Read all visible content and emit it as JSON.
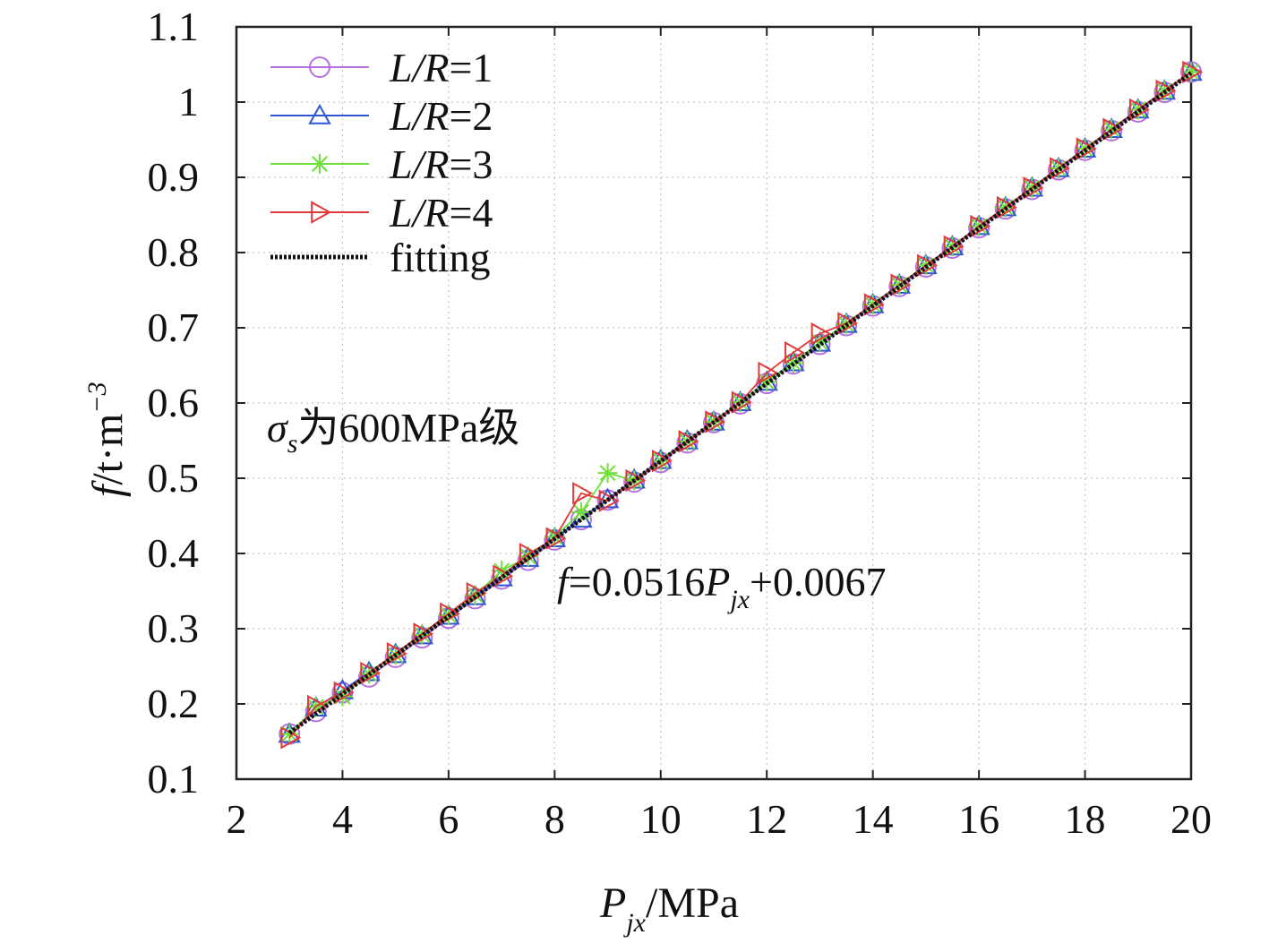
{
  "chart_data": {
    "type": "line",
    "title": "",
    "xlabel": {
      "main": "P",
      "sub": "jx",
      "unit": "/MPa"
    },
    "ylabel": {
      "main": "f",
      "rest": "/t·m",
      "sup": "−3"
    },
    "xlim": [
      2,
      20
    ],
    "ylim": [
      0.1,
      1.1
    ],
    "xticks": [
      2,
      4,
      6,
      8,
      10,
      12,
      14,
      16,
      18,
      20
    ],
    "yticks": [
      0.1,
      0.2,
      0.3,
      0.4,
      0.5,
      0.6,
      0.7,
      0.8,
      0.9,
      1,
      1.1
    ],
    "ytick_labels": [
      "0.1",
      "0.2",
      "0.3",
      "0.4",
      "0.5",
      "0.6",
      "0.7",
      "0.8",
      "0.9",
      "1",
      "1.1"
    ],
    "grid": true,
    "legend_position": "top-left",
    "x": [
      3,
      3.5,
      4,
      4.5,
      5,
      5.5,
      6,
      6.5,
      7,
      7.5,
      8,
      8.5,
      9,
      9.5,
      10,
      10.5,
      11,
      11.5,
      12,
      12.5,
      13,
      13.5,
      14,
      14.5,
      15,
      15.5,
      16,
      16.5,
      17,
      17.5,
      18,
      18.5,
      19,
      19.5,
      20
    ],
    "series": [
      {
        "name": "L/R=1",
        "label_italic": "L/R",
        "label_tail": "=1",
        "marker": "circle",
        "color": "#b56fe0",
        "values": [
          0.16,
          0.19,
          0.215,
          0.236,
          0.262,
          0.288,
          0.314,
          0.34,
          0.366,
          0.391,
          0.418,
          0.445,
          0.471,
          0.495,
          0.521,
          0.547,
          0.574,
          0.599,
          0.626,
          0.652,
          0.678,
          0.703,
          0.729,
          0.755,
          0.781,
          0.806,
          0.833,
          0.858,
          0.884,
          0.91,
          0.936,
          0.962,
          0.987,
          1.013,
          1.04
        ]
      },
      {
        "name": "L/R=2",
        "label_italic": "L/R",
        "label_tail": "=2",
        "marker": "triangle-up",
        "color": "#2f55d4",
        "values": [
          0.16,
          0.195,
          0.218,
          0.242,
          0.266,
          0.291,
          0.317,
          0.343,
          0.368,
          0.394,
          0.42,
          0.446,
          0.472,
          0.498,
          0.524,
          0.55,
          0.575,
          0.601,
          0.628,
          0.654,
          0.68,
          0.705,
          0.731,
          0.757,
          0.783,
          0.808,
          0.835,
          0.86,
          0.886,
          0.912,
          0.938,
          0.964,
          0.99,
          1.015,
          1.04
        ]
      },
      {
        "name": "L/R=3",
        "label_italic": "L/R",
        "label_tail": "=3",
        "marker": "asterisk",
        "color": "#6fe03a",
        "values": [
          0.16,
          0.196,
          0.21,
          0.24,
          0.265,
          0.292,
          0.318,
          0.345,
          0.377,
          0.396,
          0.422,
          0.455,
          0.507,
          0.497,
          0.523,
          0.549,
          0.575,
          0.601,
          0.628,
          0.653,
          0.681,
          0.705,
          0.731,
          0.757,
          0.783,
          0.808,
          0.835,
          0.86,
          0.886,
          0.912,
          0.938,
          0.964,
          0.99,
          1.015,
          1.04
        ]
      },
      {
        "name": "L/R=4",
        "label_italic": "L/R",
        "label_tail": "=4",
        "marker": "triangle-right",
        "color": "#e03a3a",
        "values": [
          0.155,
          0.197,
          0.215,
          0.241,
          0.267,
          0.293,
          0.32,
          0.347,
          0.37,
          0.399,
          0.42,
          0.48,
          0.47,
          0.497,
          0.523,
          0.549,
          0.575,
          0.601,
          0.64,
          0.667,
          0.692,
          0.706,
          0.731,
          0.757,
          0.783,
          0.808,
          0.835,
          0.86,
          0.886,
          0.912,
          0.938,
          0.964,
          0.99,
          1.015,
          1.04
        ]
      }
    ],
    "fitting": {
      "name": "fitting",
      "slope": 0.0516,
      "intercept": 0.0067,
      "x_range": [
        3,
        20
      ],
      "color": "#111111"
    },
    "annotations": {
      "material": {
        "sym": "σ",
        "sub": "s",
        "text": "为600MPa级"
      },
      "equation": {
        "lhs": "f",
        "mid": "=0.0516",
        "var": "P",
        "sub": "jx",
        "tail": "+0.0067"
      }
    }
  }
}
